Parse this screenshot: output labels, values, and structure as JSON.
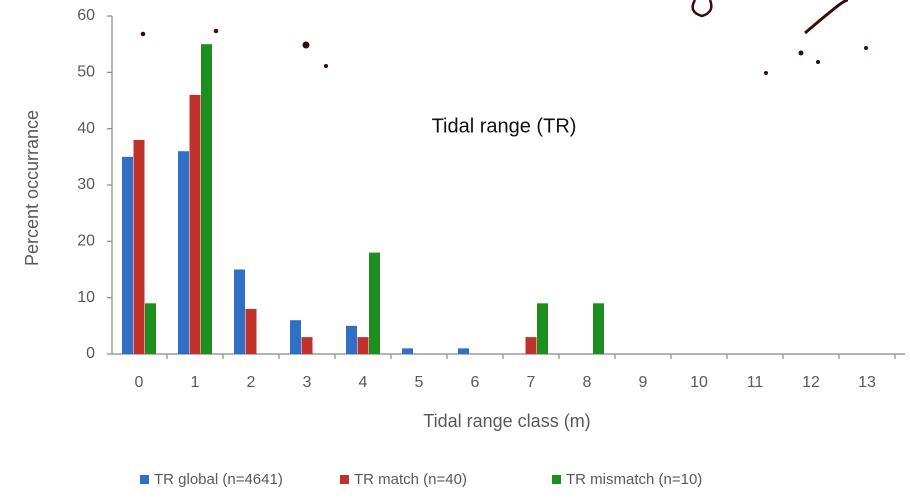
{
  "chart_data": {
    "type": "bar",
    "annotation": "Tidal range (TR)",
    "x_label": "Tidal range class (m)",
    "y_label": "Percent occurrance",
    "categories": [
      "0",
      "1",
      "2",
      "3",
      "4",
      "5",
      "6",
      "7",
      "8",
      "9",
      "10",
      "11",
      "12",
      "13"
    ],
    "series": [
      {
        "name": "TR global (n=4641)",
        "color": "#2f6fc6",
        "values": [
          35,
          36,
          15,
          6,
          5,
          1,
          1,
          0,
          0,
          0,
          0,
          0,
          0,
          0
        ]
      },
      {
        "name": "TR match (n=40)",
        "color": "#c0312b",
        "values": [
          38,
          46,
          8,
          3,
          3,
          0,
          0,
          3,
          0,
          0,
          0,
          0,
          0,
          0
        ]
      },
      {
        "name": "TR mismatch (n=10)",
        "color": "#1e8f1e",
        "values": [
          9,
          55,
          0,
          0,
          18,
          0,
          0,
          9,
          9,
          0,
          0,
          0,
          0,
          0
        ]
      }
    ],
    "ylim": [
      0,
      60
    ],
    "yticks": [
      0,
      10,
      20,
      30,
      40,
      50,
      60
    ],
    "grid": false
  }
}
